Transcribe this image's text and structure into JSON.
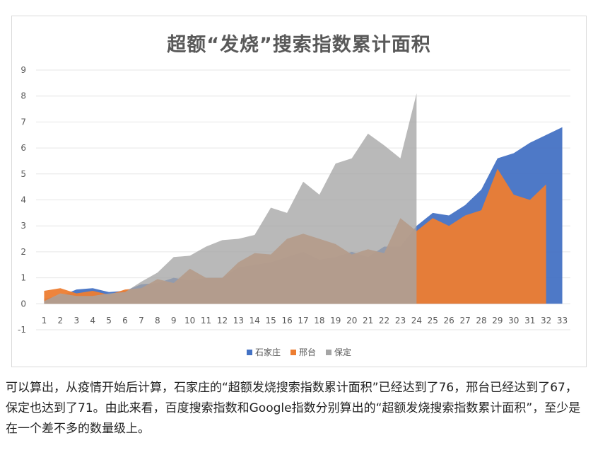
{
  "chart_data": {
    "type": "area",
    "title": "超额“发烧”搜索指数累计面积",
    "xlabel": "",
    "ylabel": "",
    "categories": [
      "1",
      "2",
      "3",
      "4",
      "5",
      "6",
      "7",
      "8",
      "9",
      "10",
      "11",
      "12",
      "13",
      "14",
      "15",
      "16",
      "17",
      "18",
      "19",
      "20",
      "21",
      "22",
      "23",
      "24",
      "25",
      "26",
      "27",
      "28",
      "29",
      "30",
      "31",
      "32",
      "33"
    ],
    "ylim": [
      -1,
      9
    ],
    "yticks": [
      "-1",
      "0",
      "1",
      "2",
      "3",
      "4",
      "5",
      "6",
      "7",
      "8",
      "9"
    ],
    "grid": true,
    "legend_position": "bottom",
    "series": [
      {
        "name": "石家庄",
        "color": "#4472c4",
        "x": [
          1,
          2,
          3,
          4,
          5,
          6,
          7,
          8,
          9,
          10,
          11,
          12,
          13,
          14,
          15,
          16,
          17,
          18,
          19,
          20,
          21,
          22,
          23,
          24,
          25,
          26,
          27,
          28,
          29,
          30,
          31,
          32,
          33
        ],
        "values": [
          0.2,
          0.3,
          0.55,
          0.6,
          0.45,
          0.5,
          0.75,
          0.8,
          1.0,
          0.9,
          1.0,
          1.0,
          1.4,
          1.5,
          1.6,
          1.8,
          2.0,
          1.7,
          1.8,
          2.0,
          1.8,
          2.2,
          2.2,
          3.0,
          3.5,
          3.4,
          3.8,
          4.4,
          5.6,
          5.8,
          6.2,
          6.5,
          6.8
        ]
      },
      {
        "name": "邢台",
        "color": "#ed7d31",
        "x": [
          1,
          2,
          3,
          4,
          5,
          6,
          7,
          8,
          9,
          10,
          11,
          12,
          13,
          14,
          15,
          16,
          17,
          18,
          19,
          20,
          21,
          22,
          23,
          24,
          25,
          26,
          27,
          28,
          29,
          30,
          31,
          32
        ],
        "values": [
          0.5,
          0.6,
          0.4,
          0.5,
          0.35,
          0.55,
          0.6,
          0.95,
          0.8,
          1.35,
          1.0,
          1.0,
          1.6,
          1.95,
          1.9,
          2.5,
          2.7,
          2.5,
          2.3,
          1.9,
          2.1,
          1.95,
          3.3,
          2.8,
          3.3,
          3.0,
          3.4,
          3.6,
          5.2,
          4.2,
          4.0,
          4.6
        ]
      },
      {
        "name": "保定",
        "color": "#a5a5a5",
        "x": [
          1,
          2,
          3,
          4,
          5,
          6,
          7,
          8,
          9,
          10,
          11,
          12,
          13,
          14,
          15,
          16,
          17,
          18,
          19,
          20,
          21,
          22,
          23,
          24
        ],
        "values": [
          0.1,
          0.4,
          0.3,
          0.3,
          0.4,
          0.45,
          0.85,
          1.2,
          1.8,
          1.85,
          2.2,
          2.45,
          2.5,
          2.65,
          3.7,
          3.5,
          4.7,
          4.2,
          5.4,
          5.6,
          6.55,
          6.1,
          5.6,
          8.1
        ]
      }
    ]
  },
  "caption": {
    "text": "可以算出，从疫情开始后计算，石家庄的“超额发烧搜索指数累计面积”已经达到了76，邢台已经达到了67，保定也达到了71。由此来看，百度搜索指数和Google指数分别算出的“超额发烧搜索指数累计面积”，至少是在一个差不多的数量级上。"
  }
}
